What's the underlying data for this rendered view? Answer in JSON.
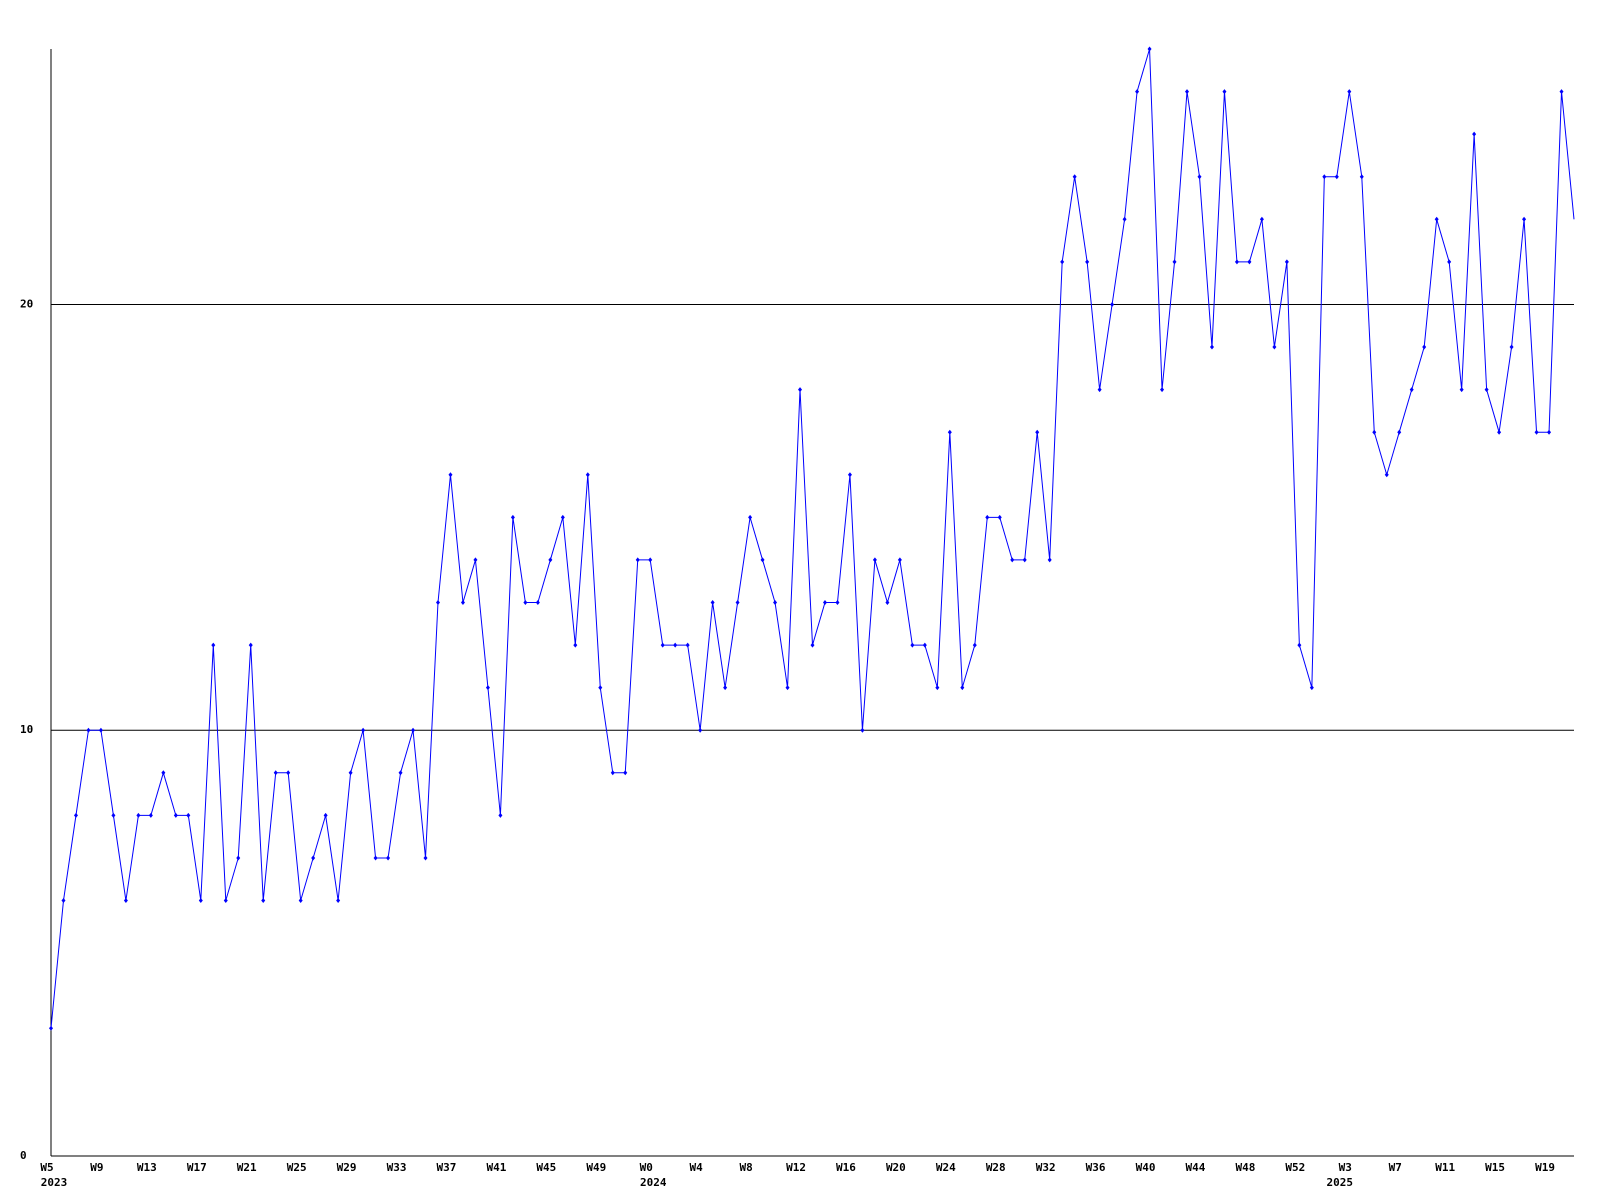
{
  "chart_data": {
    "type": "line",
    "categories": [
      "W5",
      null,
      null,
      null,
      "W9",
      null,
      null,
      null,
      "W13",
      null,
      null,
      null,
      "W17",
      null,
      null,
      null,
      "W21",
      null,
      null,
      null,
      "W25",
      null,
      null,
      null,
      "W29",
      null,
      null,
      null,
      "W33",
      null,
      null,
      null,
      "W37",
      null,
      null,
      null,
      "W41",
      null,
      null,
      null,
      "W45",
      null,
      null,
      null,
      "W49",
      null,
      null,
      null,
      "W0",
      null,
      null,
      null,
      "W4",
      null,
      null,
      null,
      "W8",
      null,
      null,
      null,
      "W12",
      null,
      null,
      null,
      "W16",
      null,
      null,
      null,
      "W20",
      null,
      null,
      null,
      "W24",
      null,
      null,
      null,
      "W28",
      null,
      null,
      null,
      "W32",
      null,
      null,
      null,
      "W36",
      null,
      null,
      null,
      "W40",
      null,
      null,
      null,
      "W44",
      null,
      null,
      null,
      "W48",
      null,
      null,
      null,
      "W52",
      null,
      null,
      null,
      "W3",
      null,
      null,
      null,
      "W7",
      null,
      null,
      null,
      "W11",
      null,
      null,
      null,
      "W15",
      null,
      null,
      null,
      "W19",
      null,
      null
    ],
    "years": [
      "2023",
      null,
      null,
      null,
      null,
      null,
      null,
      null,
      null,
      null,
      null,
      null,
      null,
      null,
      null,
      null,
      null,
      null,
      null,
      null,
      null,
      null,
      null,
      null,
      null,
      null,
      null,
      null,
      null,
      null,
      null,
      null,
      null,
      null,
      null,
      null,
      null,
      null,
      null,
      null,
      null,
      null,
      null,
      null,
      null,
      null,
      null,
      null,
      "2024",
      null,
      null,
      null,
      null,
      null,
      null,
      null,
      null,
      null,
      null,
      null,
      null,
      null,
      null,
      null,
      null,
      null,
      null,
      null,
      null,
      null,
      null,
      null,
      null,
      null,
      null,
      null,
      null,
      null,
      null,
      null,
      null,
      null,
      null,
      null,
      null,
      null,
      null,
      null,
      null,
      null,
      null,
      null,
      null,
      null,
      null,
      null,
      null,
      null,
      null,
      null,
      null,
      null,
      null,
      "2025",
      null,
      null,
      null,
      null,
      null,
      null,
      null,
      null,
      null,
      null,
      null,
      null,
      null,
      null,
      null,
      null,
      null,
      null,
      null,
      null
    ],
    "series": [
      {
        "color": "#0000ff",
        "values": [
          3,
          6,
          8,
          10,
          10,
          8,
          6,
          8,
          8,
          9,
          8,
          8,
          6,
          12,
          6,
          7,
          12,
          6,
          9,
          9,
          6,
          7,
          8,
          6,
          9,
          10,
          7,
          7,
          9,
          10,
          7,
          13,
          16,
          13,
          14,
          11,
          8,
          15,
          13,
          13,
          14,
          15,
          12,
          16,
          11,
          9,
          9,
          14,
          14,
          12,
          12,
          12,
          10,
          13,
          11,
          13,
          15,
          14,
          13,
          11,
          18,
          12,
          13,
          13,
          16,
          10,
          14,
          13,
          14,
          12,
          12,
          11,
          17,
          11,
          12,
          15,
          15,
          14,
          14,
          17,
          14,
          21,
          23,
          21,
          18,
          20,
          22,
          25,
          26,
          18,
          21,
          25,
          23,
          19,
          25,
          21,
          21,
          22,
          19,
          21,
          12,
          11,
          23,
          23,
          25,
          23,
          17,
          16,
          17,
          18,
          19,
          22,
          21,
          18,
          24,
          18,
          17,
          19,
          22,
          17,
          17,
          25,
          22
        ]
      }
    ],
    "ylim": [
      0,
      26
    ],
    "yticks": [
      0,
      10,
      20
    ],
    "grid": true
  }
}
